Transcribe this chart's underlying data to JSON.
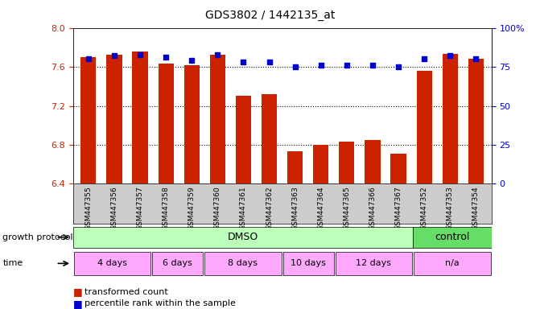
{
  "title": "GDS3802 / 1442135_at",
  "samples": [
    "GSM447355",
    "GSM447356",
    "GSM447357",
    "GSM447358",
    "GSM447359",
    "GSM447360",
    "GSM447361",
    "GSM447362",
    "GSM447363",
    "GSM447364",
    "GSM447365",
    "GSM447366",
    "GSM447367",
    "GSM447352",
    "GSM447353",
    "GSM447354"
  ],
  "transformed_count": [
    7.7,
    7.72,
    7.76,
    7.63,
    7.62,
    7.72,
    7.3,
    7.32,
    6.73,
    6.8,
    6.83,
    6.85,
    6.71,
    7.56,
    7.73,
    7.68
  ],
  "percentile_rank": [
    80,
    82,
    83,
    81,
    79,
    83,
    78,
    78,
    75,
    76,
    76,
    76,
    75,
    80,
    82,
    80
  ],
  "ylim_left": [
    6.4,
    8.0
  ],
  "ylim_right": [
    0,
    100
  ],
  "yticks_left": [
    6.4,
    6.8,
    7.2,
    7.6,
    8.0
  ],
  "yticks_right": [
    0,
    25,
    50,
    75,
    100
  ],
  "bar_color": "#cc2200",
  "dot_color": "#0000cc",
  "label_bg_color": "#cccccc",
  "dmso_color": "#bbffbb",
  "control_color": "#66dd66",
  "time_color": "#ffaaff",
  "left_axis_color": "#cc2200",
  "right_axis_color": "#0000cc",
  "title_fontsize": 10,
  "axis_fontsize": 8,
  "label_fontsize": 6.5,
  "time_groups": [
    {
      "label": "4 days",
      "start": 0,
      "end": 3
    },
    {
      "label": "6 days",
      "start": 3,
      "end": 5
    },
    {
      "label": "8 days",
      "start": 5,
      "end": 8
    },
    {
      "label": "10 days",
      "start": 8,
      "end": 10
    },
    {
      "label": "12 days",
      "start": 10,
      "end": 13
    },
    {
      "label": "n/a",
      "start": 13,
      "end": 16
    }
  ],
  "row_label_growth": "growth protocol",
  "row_label_time": "time"
}
